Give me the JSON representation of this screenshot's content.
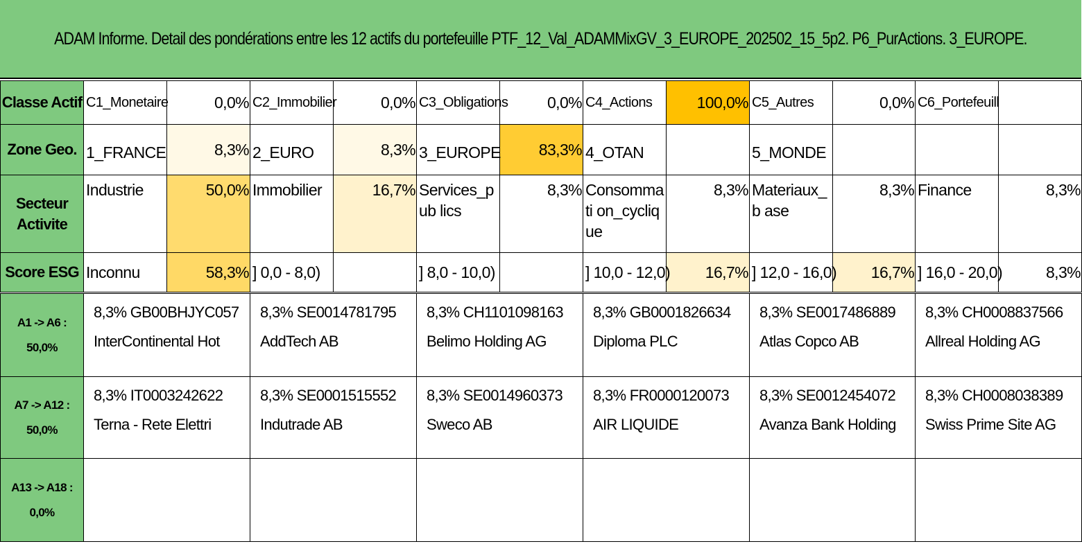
{
  "title": "ADAM Informe. Detail des pondérations entre les 12 actifs du portefeuille PTF_12_Val_ADAMMixGV_3_EUROPE_202502_15_5p2. P6_PurActions. 3_EUROPE.",
  "colors": {
    "header_green": "#7fc97f",
    "highlight_max": "#ffc000",
    "highlight_high": "#ffcc33",
    "highlight_mid": "#ffd966",
    "highlight_low": "#fff2cc"
  },
  "rows": {
    "classe": {
      "header": "Classe Actif",
      "cells": [
        {
          "label": "C1_Monetaire",
          "pct": "0,0%"
        },
        {
          "label": "C2_Immobilier",
          "pct": "0,0%"
        },
        {
          "label": "C3_Obligations",
          "pct": "0,0%"
        },
        {
          "label": "C4_Actions",
          "pct": "100,0%"
        },
        {
          "label": "C5_Autres",
          "pct": "0,0%"
        },
        {
          "label": "C6_Portefeuill",
          "pct": ""
        }
      ]
    },
    "zone": {
      "header": "Zone Geo.",
      "cells": [
        {
          "label": "1_FRANCE",
          "pct": "8,3%"
        },
        {
          "label": "2_EURO",
          "pct": "8,3%"
        },
        {
          "label": "3_EUROPE",
          "pct": "83,3%"
        },
        {
          "label": "4_OTAN",
          "pct": ""
        },
        {
          "label": "5_MONDE",
          "pct": ""
        },
        {
          "label": "",
          "pct": ""
        }
      ]
    },
    "secteur": {
      "header": "Secteur Activite",
      "cells": [
        {
          "label": "Industrie",
          "pct": "50,0%"
        },
        {
          "label": "Immobilier",
          "pct": "16,7%"
        },
        {
          "label": "Services_pub lics",
          "pct": "8,3%"
        },
        {
          "label": "Consommati on_cyclique",
          "pct": "8,3%"
        },
        {
          "label": "Materiaux_b ase",
          "pct": "8,3%"
        },
        {
          "label": "Finance",
          "pct": "8,3%"
        }
      ]
    },
    "esg": {
      "header": "Score ESG",
      "cells": [
        {
          "label": "Inconnu",
          "pct": "58,3%"
        },
        {
          "label": "] 0,0 - 8,0)",
          "pct": ""
        },
        {
          "label": "] 8,0 - 10,0)",
          "pct": ""
        },
        {
          "label": "] 10,0 - 12,0)",
          "pct": "16,7%"
        },
        {
          "label": "] 12,0 - 16,0)",
          "pct": "16,7%"
        },
        {
          "label": "] 16,0 - 20,0)",
          "pct": "8,3%"
        }
      ]
    }
  },
  "asset_groups": [
    {
      "header_line1": "A1 -> A6 :",
      "header_line2": "50,0%",
      "assets": [
        {
          "line1": "8,3% GB00BHJYC057",
          "line2": "InterContinental Hot"
        },
        {
          "line1": "8,3% SE0014781795",
          "line2": "AddTech AB"
        },
        {
          "line1": "8,3% CH1101098163",
          "line2": "Belimo Holding AG"
        },
        {
          "line1": "8,3% GB0001826634",
          "line2": "Diploma PLC"
        },
        {
          "line1": "8,3% SE0017486889",
          "line2": "Atlas Copco AB"
        },
        {
          "line1": "8,3% CH0008837566",
          "line2": "Allreal Holding AG"
        }
      ]
    },
    {
      "header_line1": "A7 -> A12 :",
      "header_line2": "50,0%",
      "assets": [
        {
          "line1": "8,3% IT0003242622",
          "line2": "Terna - Rete Elettri"
        },
        {
          "line1": "8,3% SE0001515552",
          "line2": "Indutrade AB"
        },
        {
          "line1": "8,3% SE0014960373",
          "line2": "Sweco AB"
        },
        {
          "line1": "8,3% FR0000120073",
          "line2": "AIR LIQUIDE"
        },
        {
          "line1": "8,3% SE0012454072",
          "line2": "Avanza Bank Holding"
        },
        {
          "line1": "8,3% CH0008038389",
          "line2": "Swiss Prime Site AG"
        }
      ]
    },
    {
      "header_line1": "A13 -> A18 :",
      "header_line2": "0,0%",
      "assets": [
        {
          "line1": "",
          "line2": ""
        },
        {
          "line1": "",
          "line2": ""
        },
        {
          "line1": "",
          "line2": ""
        },
        {
          "line1": "",
          "line2": ""
        },
        {
          "line1": "",
          "line2": ""
        },
        {
          "line1": "",
          "line2": ""
        }
      ]
    }
  ]
}
